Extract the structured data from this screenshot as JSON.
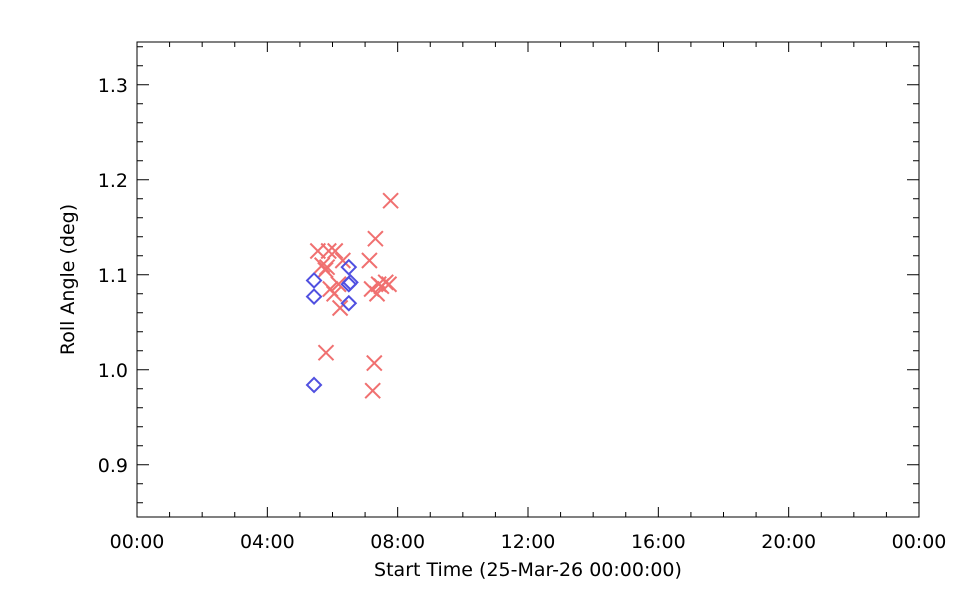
{
  "chart_data": {
    "type": "scatter",
    "title": "",
    "xlabel": "Start Time (25-Mar-26 00:00:00)",
    "ylabel": "Roll Angle (deg)",
    "xlim": [
      "00:00",
      "24:00"
    ],
    "ylim": [
      0.845,
      1.345
    ],
    "x_ticks": [
      "00:00",
      "04:00",
      "08:00",
      "12:00",
      "16:00",
      "20:00",
      "00:00"
    ],
    "y_ticks": [
      "0.9",
      "1.0",
      "1.1",
      "1.2",
      "1.3"
    ],
    "grid": false,
    "series": [
      {
        "marker": "x",
        "color": "#f07070",
        "points": [
          {
            "x": "05:33",
            "y": 1.125
          },
          {
            "x": "05:41",
            "y": 1.11
          },
          {
            "x": "05:47",
            "y": 1.105
          },
          {
            "x": "05:50",
            "y": 1.108
          },
          {
            "x": "05:53",
            "y": 1.125
          },
          {
            "x": "05:56",
            "y": 1.085
          },
          {
            "x": "06:03",
            "y": 1.08
          },
          {
            "x": "06:05",
            "y": 1.125
          },
          {
            "x": "06:11",
            "y": 1.09
          },
          {
            "x": "06:14",
            "y": 1.065
          },
          {
            "x": "06:19",
            "y": 1.115
          },
          {
            "x": "05:48",
            "y": 1.018
          },
          {
            "x": "07:08",
            "y": 1.115
          },
          {
            "x": "07:12",
            "y": 1.085
          },
          {
            "x": "07:14",
            "y": 0.978
          },
          {
            "x": "07:17",
            "y": 1.007
          },
          {
            "x": "07:19",
            "y": 1.138
          },
          {
            "x": "07:22",
            "y": 1.08
          },
          {
            "x": "07:25",
            "y": 1.09
          },
          {
            "x": "07:30",
            "y": 1.088
          },
          {
            "x": "07:38",
            "y": 1.092
          },
          {
            "x": "07:44",
            "y": 1.09
          },
          {
            "x": "07:47",
            "y": 1.178
          }
        ]
      },
      {
        "marker": "diamond",
        "color": "#5050e0",
        "points": [
          {
            "x": "05:26",
            "y": 1.094
          },
          {
            "x": "05:26",
            "y": 1.077
          },
          {
            "x": "05:26",
            "y": 0.984
          },
          {
            "x": "06:30",
            "y": 1.108
          },
          {
            "x": "06:30",
            "y": 1.09
          },
          {
            "x": "06:33",
            "y": 1.092
          },
          {
            "x": "06:30",
            "y": 1.07
          }
        ]
      }
    ]
  }
}
